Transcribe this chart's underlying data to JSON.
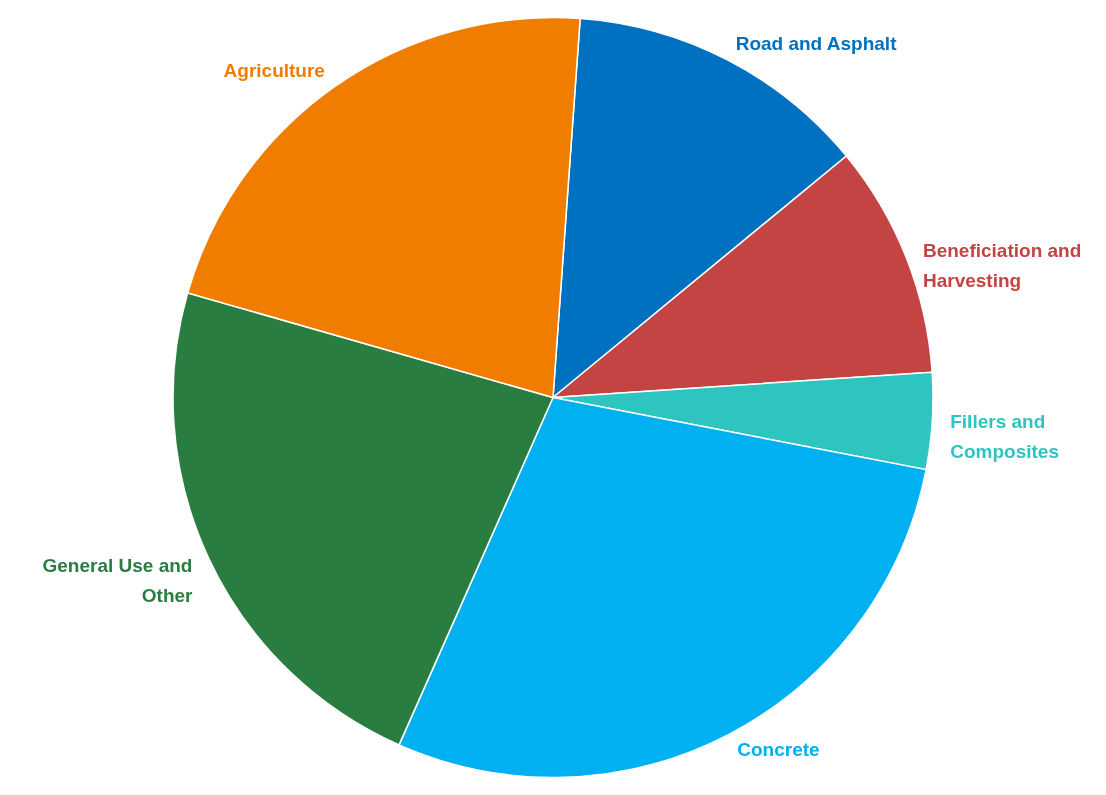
{
  "chart_data": {
    "type": "pie",
    "categories": [
      "Road and Asphalt",
      "Beneficiation and Harvesting",
      "Fillers and Composites",
      "Concrete",
      "General Use and Other",
      "Agriculture"
    ],
    "values": [
      12.9,
      9.9,
      4.1,
      28.6,
      22.8,
      21.7
    ],
    "colors": [
      "#0070c0",
      "#c44444",
      "#2ec4c0",
      "#00b0f0",
      "#2a7d40",
      "#f07d00"
    ]
  }
}
